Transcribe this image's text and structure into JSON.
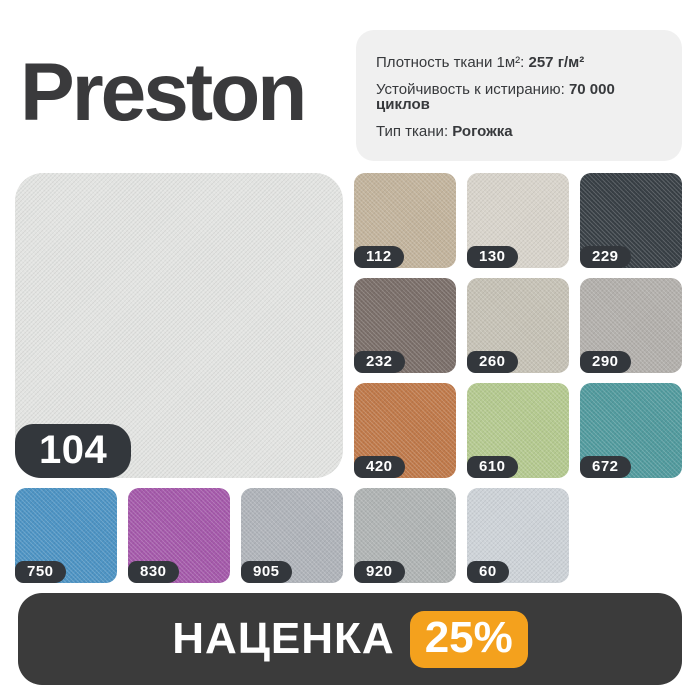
{
  "header": {
    "title": "Preston",
    "specs": [
      {
        "label": "Плотность ткани 1м²:",
        "value": "257 г/м²"
      },
      {
        "label": "Устойчивость к истиранию:",
        "value": "70 000 циклов"
      },
      {
        "label": "Тип ткани:",
        "value": "Рогожка"
      }
    ]
  },
  "main_swatch": {
    "code": "104",
    "color": "#e3e4e2"
  },
  "swatches": [
    {
      "code": "112",
      "color": "#c3b49d"
    },
    {
      "code": "130",
      "color": "#d8d4cb"
    },
    {
      "code": "229",
      "color": "#394046"
    },
    {
      "code": "232",
      "color": "#7b6f6a"
    },
    {
      "code": "260",
      "color": "#c6c2b6"
    },
    {
      "code": "290",
      "color": "#b3b0ac"
    },
    {
      "code": "420",
      "color": "#c07a4b"
    },
    {
      "code": "610",
      "color": "#b5ca90"
    },
    {
      "code": "672",
      "color": "#529b9e"
    },
    {
      "code": "750",
      "color": "#4e94c4"
    },
    {
      "code": "830",
      "color": "#a55aab"
    },
    {
      "code": "905",
      "color": "#b0b4ba"
    },
    {
      "code": "920",
      "color": "#b0b4b4"
    },
    {
      "code": "60",
      "color": "#ced3d8"
    }
  ],
  "footer": {
    "label": "НАЦЕНКА",
    "percent": "25%"
  },
  "colors": {
    "page_bg": "#ffffff",
    "title_text": "#3a3a3c",
    "card_bg": "#f0f0f0",
    "badge_bg": "#33373c",
    "bar_bg": "#3b3b3b",
    "accent_orange": "#f4a11d"
  }
}
